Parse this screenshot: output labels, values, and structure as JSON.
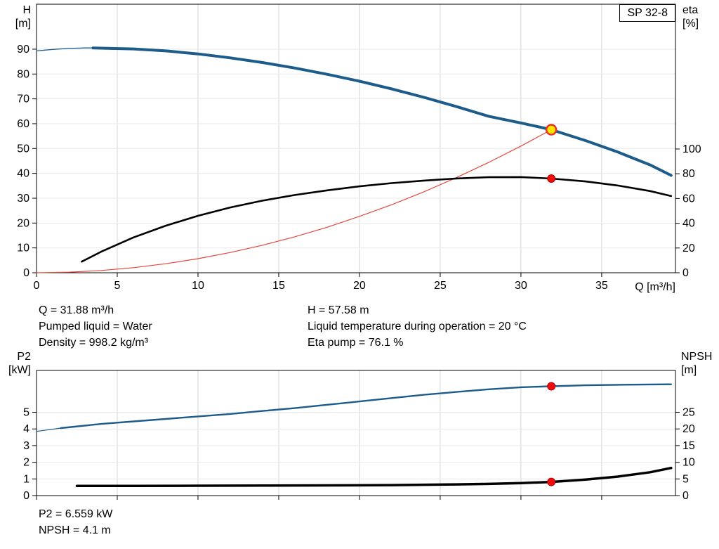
{
  "axis_labels": {
    "h_1": "H",
    "h_2": "[m]",
    "eta_1": "eta",
    "eta_2": "[%]",
    "q": "Q [m³/h]",
    "p2_1": "P2",
    "p2_2": "[kW]",
    "npsh_1": "NPSH",
    "npsh_2": "[m]"
  },
  "result_top": {
    "left": [
      "Q = 31.88 m³/h",
      "Pumped liquid = Water",
      "Density = 998.2 kg/m³"
    ],
    "right": [
      "H = 57.58 m",
      "Liquid temperature during operation = 20 °C",
      "Eta pump = 76.1 %"
    ]
  },
  "result_bottom": [
    "P2 = 6.559 kW",
    "NPSH = 4.1 m"
  ],
  "chart_data": [
    {
      "type": "line",
      "title": "SP 32-8",
      "xlabel": "Q [m³/h]",
      "ylabel_left": "H [m]",
      "ylabel_right": "eta [%]",
      "xlim": [
        0,
        39.57
      ],
      "x_ticks": [
        0,
        5,
        10,
        15,
        20,
        25,
        30,
        35
      ],
      "ylim_left": [
        0,
        108.1
      ],
      "y_ticks_left": [
        0,
        10,
        20,
        30,
        40,
        50,
        60,
        70,
        80,
        90
      ],
      "ylim_right": [
        0,
        217
      ],
      "y_ticks_right": [
        0,
        20,
        40,
        60,
        80,
        100
      ],
      "grid": true,
      "series": [
        {
          "name": "head-curve-low-flow",
          "axis": "left",
          "color": "#1d5c8a",
          "width": 1.3,
          "x": [
            0,
            1,
            2,
            3,
            3.5
          ],
          "y": [
            89.3,
            89.9,
            90.3,
            90.5,
            90.5
          ]
        },
        {
          "name": "head-curve",
          "axis": "left",
          "color": "#1d5c8a",
          "width": 4,
          "x": [
            3.5,
            6,
            8,
            10,
            12,
            14,
            16,
            18,
            20,
            22,
            24,
            26,
            28,
            30,
            31.88,
            34,
            36,
            38,
            39.3
          ],
          "y": [
            90.5,
            90.1,
            89.3,
            88.1,
            86.5,
            84.6,
            82.4,
            79.9,
            77.1,
            74.0,
            70.6,
            66.9,
            63.0,
            60.3,
            57.58,
            53.2,
            48.6,
            43.4,
            39.2
          ]
        },
        {
          "name": "system-curve",
          "axis": "left",
          "color": "#e4473c",
          "width": 1.2,
          "x": [
            0,
            2,
            4,
            6,
            8,
            10,
            12,
            14,
            16,
            18,
            20,
            22,
            24,
            26,
            28,
            30,
            31.88
          ],
          "y": [
            0,
            0.23,
            0.91,
            2.04,
            3.63,
            5.67,
            8.16,
            11.1,
            14.5,
            18.3,
            22.7,
            27.4,
            32.6,
            38.3,
            44.4,
            51.0,
            57.58
          ]
        },
        {
          "name": "efficiency-curve",
          "axis": "right",
          "color": "#000000",
          "width": 2.6,
          "x": [
            2.8,
            4,
            6,
            8,
            10,
            12,
            14,
            16,
            18,
            20,
            22,
            24,
            26,
            28,
            30,
            31.88,
            34,
            36,
            38,
            39.3
          ],
          "y": [
            9,
            17,
            28.5,
            38,
            46,
            52.8,
            58.3,
            62.8,
            66.6,
            69.8,
            72.4,
            74.5,
            76.2,
            77.2,
            77.3,
            76.1,
            73.8,
            70.5,
            66,
            62
          ]
        }
      ],
      "points": [
        {
          "name": "duty-point",
          "axis": "left",
          "x": 31.88,
          "y": 57.58,
          "r": 7,
          "fill": "#ffe400",
          "stroke": "#e63229",
          "stroke_width": 2.5
        },
        {
          "name": "efficiency-point",
          "axis": "right",
          "x": 31.88,
          "y": 76.1,
          "r": 5.5,
          "fill": "#ee0d0d",
          "stroke": "#b80000",
          "stroke_width": 1
        }
      ]
    },
    {
      "type": "line",
      "title": "P2 / NPSH",
      "xlabel": "",
      "ylabel_left": "P2 [kW]",
      "ylabel_right": "NPSH [m]",
      "xlim": [
        0,
        39.57
      ],
      "x_ticks": [
        0,
        5,
        10,
        15,
        20,
        25,
        30,
        35
      ],
      "ylim_left": [
        0,
        7.51
      ],
      "y_ticks_left": [
        0,
        1,
        2,
        3,
        4,
        5
      ],
      "ylim_right": [
        0,
        37.55
      ],
      "y_ticks_right": [
        0,
        5,
        10,
        15,
        20,
        25
      ],
      "grid": true,
      "series": [
        {
          "name": "power-curve-low-flow",
          "axis": "left",
          "color": "#1d5c8a",
          "width": 1.2,
          "x": [
            0,
            1.5
          ],
          "y": [
            3.85,
            4.05
          ]
        },
        {
          "name": "power-curve",
          "axis": "left",
          "color": "#1d5c8a",
          "width": 2.4,
          "x": [
            1.5,
            4,
            6,
            8,
            10,
            12,
            14,
            16,
            18,
            20,
            22,
            24,
            26,
            28,
            30,
            31.88,
            34,
            36,
            38,
            39.3
          ],
          "y": [
            4.05,
            4.3,
            4.45,
            4.6,
            4.75,
            4.9,
            5.08,
            5.25,
            5.45,
            5.65,
            5.85,
            6.05,
            6.22,
            6.38,
            6.5,
            6.559,
            6.62,
            6.65,
            6.67,
            6.68
          ]
        },
        {
          "name": "npsh-curve",
          "axis": "right",
          "color": "#000000",
          "width": 3.5,
          "x": [
            2.5,
            6,
            10,
            14,
            18,
            22,
            26,
            28,
            30,
            31.88,
            34,
            36,
            38,
            39.3
          ],
          "y": [
            2.9,
            2.9,
            2.95,
            3.0,
            3.05,
            3.15,
            3.35,
            3.5,
            3.75,
            4.1,
            4.8,
            5.7,
            7.0,
            8.3
          ]
        }
      ],
      "points": [
        {
          "name": "power-point",
          "axis": "left",
          "x": 31.88,
          "y": 6.559,
          "r": 5.5,
          "fill": "#ee0d0d",
          "stroke": "#b80000",
          "stroke_width": 1
        },
        {
          "name": "npsh-point",
          "axis": "right",
          "x": 31.88,
          "y": 4.1,
          "r": 5.5,
          "fill": "#ee0d0d",
          "stroke": "#b80000",
          "stroke_width": 1
        }
      ]
    }
  ]
}
